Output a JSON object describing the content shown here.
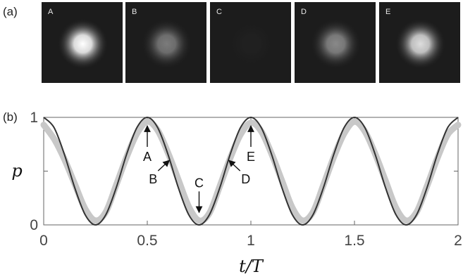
{
  "panel_labels": {
    "a": "(a)",
    "b": "(b)"
  },
  "images": [
    {
      "label": "A",
      "brightness": 1.0
    },
    {
      "label": "B",
      "brightness": 0.42
    },
    {
      "label": "C",
      "brightness": 0.02
    },
    {
      "label": "D",
      "brightness": 0.48
    },
    {
      "label": "E",
      "brightness": 0.85
    }
  ],
  "colors": {
    "image_bg": "#1c1c1c",
    "model_line": "#333333",
    "data_band": "#c8c8c8",
    "axis": "#666666"
  },
  "chart_data": {
    "type": "line",
    "title": "",
    "xlabel": "t/T",
    "ylabel": "p",
    "xlim": [
      0,
      2
    ],
    "ylim": [
      0,
      1
    ],
    "x_ticks": [
      0,
      0.5,
      1,
      1.5,
      2
    ],
    "x_tick_labels": [
      "0",
      "0.5",
      "1",
      "1.5",
      "2"
    ],
    "y_ticks": [
      0,
      0.5,
      1
    ],
    "y_tick_labels": [
      "0",
      "",
      "1"
    ],
    "grid": false,
    "series": [
      {
        "style": "thick-light-gray-band",
        "description_hidden": true,
        "x": [
          0,
          0.05,
          0.1,
          0.15,
          0.2,
          0.25,
          0.3,
          0.35,
          0.4,
          0.45,
          0.5,
          0.55,
          0.6,
          0.65,
          0.7,
          0.75,
          0.8,
          0.85,
          0.9,
          0.95,
          1,
          1.05,
          1.1,
          1.15,
          1.2,
          1.25,
          1.3,
          1.35,
          1.4,
          1.45,
          1.5,
          1.55,
          1.6,
          1.65,
          1.7,
          1.75,
          1.8,
          1.85,
          1.9,
          1.95,
          2
        ],
        "y": [
          0.93,
          0.8,
          0.61,
          0.38,
          0.15,
          0.04,
          0.12,
          0.37,
          0.63,
          0.85,
          0.96,
          0.88,
          0.67,
          0.42,
          0.17,
          0.04,
          0.11,
          0.36,
          0.62,
          0.84,
          0.95,
          0.87,
          0.66,
          0.41,
          0.16,
          0.04,
          0.12,
          0.37,
          0.63,
          0.85,
          0.96,
          0.87,
          0.66,
          0.41,
          0.16,
          0.04,
          0.12,
          0.36,
          0.62,
          0.84,
          0.93
        ]
      },
      {
        "style": "dark-line",
        "x": [
          0,
          0.05,
          0.1,
          0.15,
          0.2,
          0.25,
          0.3,
          0.35,
          0.4,
          0.45,
          0.5,
          0.55,
          0.6,
          0.65,
          0.7,
          0.75,
          0.8,
          0.85,
          0.9,
          0.95,
          1,
          1.05,
          1.1,
          1.15,
          1.2,
          1.25,
          1.3,
          1.35,
          1.4,
          1.45,
          1.5,
          1.55,
          1.6,
          1.65,
          1.7,
          1.75,
          1.8,
          1.85,
          1.9,
          1.95,
          2
        ],
        "y": [
          1,
          0.905,
          0.655,
          0.345,
          0.095,
          0,
          0.095,
          0.345,
          0.655,
          0.905,
          1,
          0.905,
          0.655,
          0.345,
          0.095,
          0,
          0.095,
          0.345,
          0.655,
          0.905,
          1,
          0.905,
          0.655,
          0.345,
          0.095,
          0,
          0.095,
          0.345,
          0.655,
          0.905,
          1,
          0.905,
          0.655,
          0.345,
          0.095,
          0,
          0.095,
          0.345,
          0.655,
          0.905,
          1
        ]
      }
    ],
    "annotations": [
      {
        "text": "A",
        "x": 0.5,
        "y": 1.0,
        "arrow": "up"
      },
      {
        "text": "B",
        "x": 0.62,
        "y": 0.62,
        "arrow": "up-right"
      },
      {
        "text": "C",
        "x": 0.75,
        "y": 0.05,
        "arrow": "down"
      },
      {
        "text": "D",
        "x": 0.88,
        "y": 0.62,
        "arrow": "up-left"
      },
      {
        "text": "E",
        "x": 1.0,
        "y": 1.0,
        "arrow": "up"
      }
    ]
  }
}
